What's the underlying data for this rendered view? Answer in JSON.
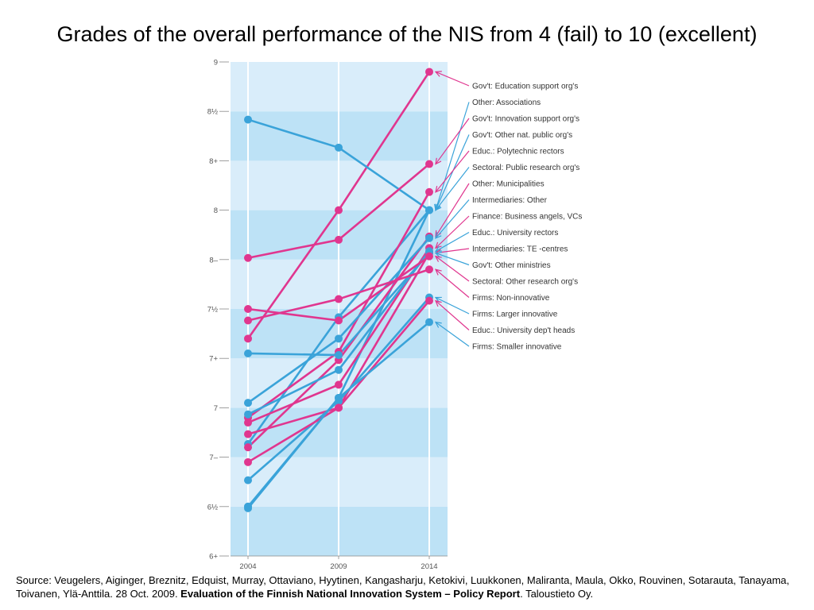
{
  "title": "Grades of the overall performance of the NIS from 4 (fail) to 10 (excellent)",
  "source": {
    "prefix": "Source: Veugelers, Aiginger, Breznitz, Edquist, Murray, Ottaviano, Hyytinen, Kangasharju, Ketokivi, Luukkonen, Maliranta, Maula, Okko, Rouvinen, Sotarauta, Tanayama, Toivanen, Ylä-Anttila. 28 Oct. 2009. ",
    "bold": "Evaluation of the Finnish National Innovation System – Policy Report",
    "suffix": ". Taloustieto Oy."
  },
  "colors": {
    "blue": "#3aa3d9",
    "pink": "#e0368f",
    "band_light": "#d9edfa",
    "band_dark": "#bde2f6",
    "axis_text": "#555555"
  },
  "chart_data": {
    "type": "line",
    "title": "Grades of the overall performance of the NIS from 4 (fail) to 10 (excellent)",
    "x": [
      "2004",
      "2009",
      "2014"
    ],
    "ylim": [
      6.0,
      9.0
    ],
    "yticks": [
      {
        "value": 9.0,
        "label": "9"
      },
      {
        "value": 8.7,
        "label": "8½"
      },
      {
        "value": 8.4,
        "label": "8+"
      },
      {
        "value": 8.1,
        "label": "8"
      },
      {
        "value": 7.8,
        "label": "8–"
      },
      {
        "value": 7.5,
        "label": "7½"
      },
      {
        "value": 7.2,
        "label": "7+"
      },
      {
        "value": 6.9,
        "label": "7"
      },
      {
        "value": 6.6,
        "label": "7–"
      },
      {
        "value": 6.3,
        "label": "6½"
      },
      {
        "value": 6.0,
        "label": "6+"
      }
    ],
    "grid": "alternating horizontal bands",
    "series": [
      {
        "name": "Gov't: Education support org's",
        "color": "pink",
        "values": [
          7.32,
          8.1,
          8.94
        ]
      },
      {
        "name": "Other: Associations",
        "color": "blue",
        "values": [
          8.65,
          8.48,
          8.1
        ]
      },
      {
        "name": "Gov't: Innovation support org's",
        "color": "pink",
        "values": [
          7.81,
          7.92,
          8.38
        ]
      },
      {
        "name": "Gov't: Other nat. public org's",
        "color": "blue",
        "values": [
          6.68,
          7.45,
          8.1
        ]
      },
      {
        "name": "Educ.: Polytechnic rectors",
        "color": "pink",
        "values": [
          6.84,
          7.24,
          8.21
        ]
      },
      {
        "name": "Sectoral: Public research org's",
        "color": "blue",
        "values": [
          6.3,
          6.96,
          8.1
        ]
      },
      {
        "name": "Other: Municipalities",
        "color": "pink",
        "values": [
          6.66,
          7.19,
          7.94
        ]
      },
      {
        "name": "Intermediaries: Other",
        "color": "blue",
        "values": [
          6.93,
          7.32,
          7.93
        ]
      },
      {
        "name": "Finance: Business angels, VCs",
        "color": "pink",
        "values": [
          6.81,
          7.04,
          7.87
        ]
      },
      {
        "name": "Educ.: University rectors",
        "color": "blue",
        "values": [
          6.86,
          7.13,
          7.85
        ]
      },
      {
        "name": "Intermediaries: TE -centres",
        "color": "pink",
        "values": [
          6.74,
          6.9,
          7.84
        ]
      },
      {
        "name": "Gov't: Other ministries",
        "color": "blue",
        "values": [
          7.23,
          7.22,
          7.84
        ]
      },
      {
        "name": "Sectoral: Other research org's",
        "color": "pink",
        "values": [
          7.5,
          7.43,
          7.82
        ]
      },
      {
        "name": "Firms: Non-innovative",
        "color": "pink",
        "values": [
          7.43,
          7.56,
          7.74
        ]
      },
      {
        "name": "Firms: Larger innovative",
        "color": "blue",
        "values": [
          6.46,
          6.94,
          7.57
        ]
      },
      {
        "name": "Educ.: University dep't heads",
        "color": "pink",
        "values": [
          6.57,
          6.9,
          7.55
        ]
      },
      {
        "name": "Firms: Smaller innovative",
        "color": "blue",
        "values": [
          6.29,
          6.96,
          7.42
        ]
      }
    ],
    "legend_placement": "right"
  }
}
